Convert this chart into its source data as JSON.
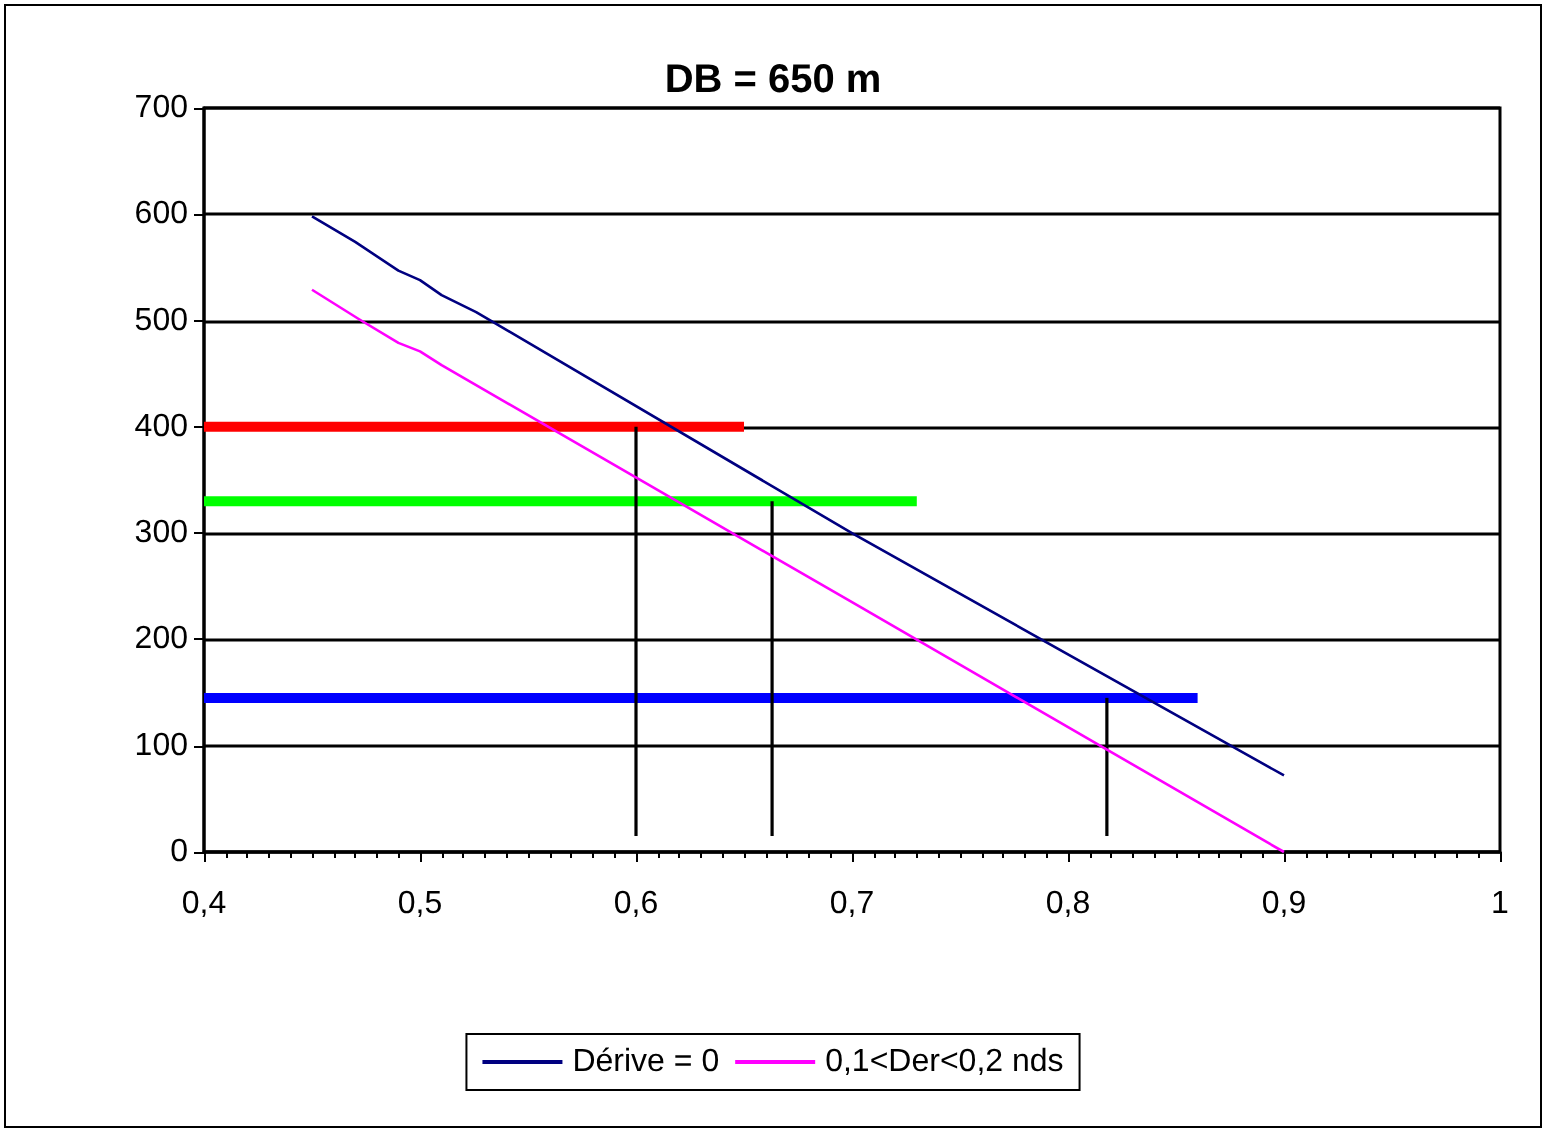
{
  "chart_data": {
    "type": "line",
    "title": "DB = 650 m",
    "series": [
      {
        "name": "Dérive = 0",
        "color": "#000080",
        "x": [
          0.45,
          0.47,
          0.49,
          0.5,
          0.51,
          0.526,
          0.7,
          0.9
        ],
        "values": [
          598,
          574,
          547,
          538,
          524,
          508,
          300,
          72
        ]
      },
      {
        "name": "0,1<Der<0,2 nds",
        "color": "#ff00ff",
        "x": [
          0.45,
          0.472,
          0.49,
          0.5,
          0.51,
          0.7,
          0.9
        ],
        "values": [
          529,
          501,
          479,
          471,
          458,
          235,
          0
        ]
      },
      {
        "color": "#ff0000",
        "x": [
          0.4,
          0.65
        ],
        "values": [
          400,
          400
        ]
      },
      {
        "color": "#00ff00",
        "x": [
          0.4,
          0.73
        ],
        "values": [
          330,
          330
        ]
      },
      {
        "color": "#0000ff",
        "x": [
          0.4,
          0.86
        ],
        "values": [
          145,
          145
        ]
      },
      {
        "color": "#000000",
        "x": [
          0.6,
          0.6
        ],
        "values": [
          15,
          400
        ]
      },
      {
        "color": "#000000",
        "x": [
          0.663,
          0.663
        ],
        "values": [
          15,
          330
        ]
      },
      {
        "color": "#000000",
        "x": [
          0.818,
          0.818
        ],
        "values": [
          15,
          145
        ]
      }
    ],
    "xlim": [
      0.4,
      1
    ],
    "xticks": [
      {
        "value": 0.4,
        "label": "0,4"
      },
      {
        "value": 0.5,
        "label": "0,5"
      },
      {
        "value": 0.6,
        "label": "0,6"
      },
      {
        "value": 0.7,
        "label": "0,7"
      },
      {
        "value": 0.8,
        "label": "0,8"
      },
      {
        "value": 0.9,
        "label": "0,9"
      },
      1
    ],
    "ylim": [
      0,
      700
    ],
    "yticks": [
      0,
      100,
      200,
      300,
      400,
      500,
      600,
      700
    ],
    "grid": "y",
    "legend": "bottom",
    "marker": "none",
    "line_style": "solid"
  }
}
